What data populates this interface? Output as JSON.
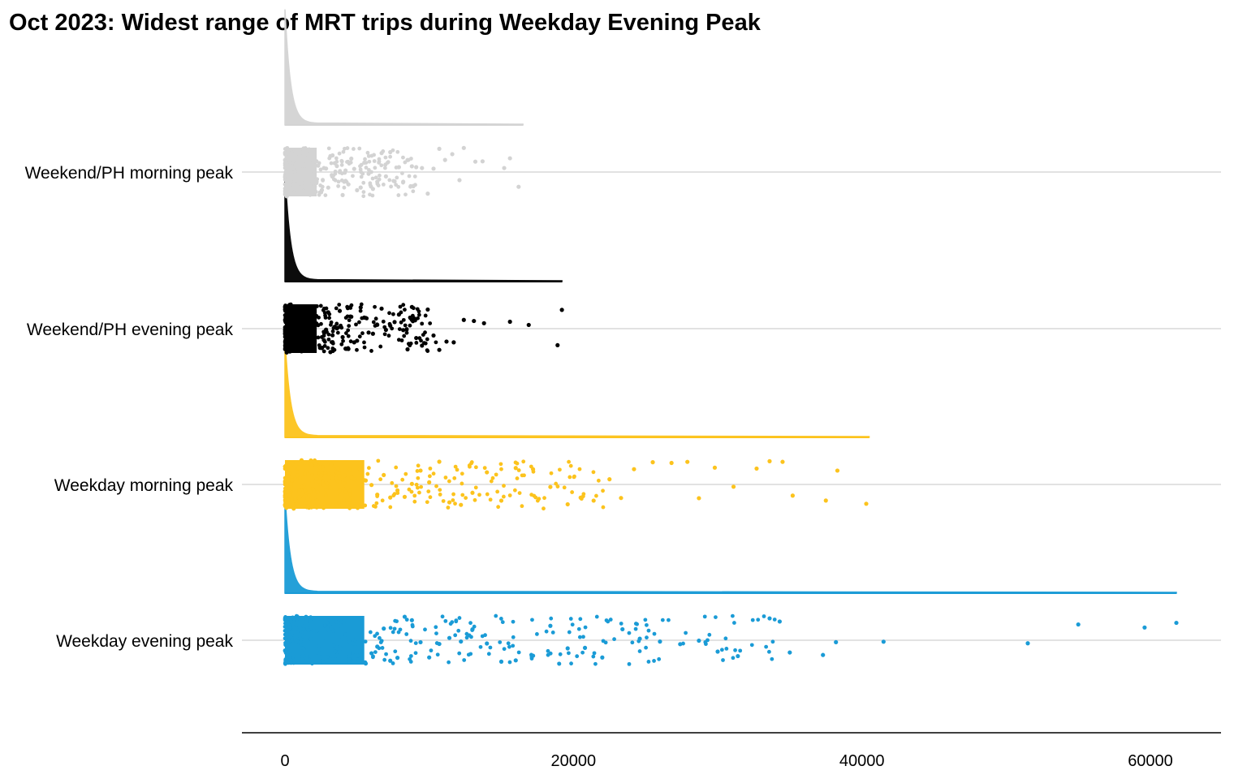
{
  "chart_data": {
    "type": "raincloud",
    "title": "Oct 2023: Widest range of MRT trips during Weekday Evening Peak",
    "xlabel": "",
    "ylabel": "",
    "xlim": [
      -3000,
      65000
    ],
    "x_ticks": [
      0,
      20000,
      40000,
      60000
    ],
    "x_tick_labels": [
      "0",
      "20000",
      "40000",
      "60000"
    ],
    "grid": "horizontal",
    "legend": "none",
    "categories": [
      "Weekend/PH morning peak",
      "Weekend/PH evening peak",
      "Weekday morning peak",
      "Weekday evening peak"
    ],
    "series": [
      {
        "category": "Weekend/PH morning peak",
        "color": "#d3d3d3",
        "max": 16500,
        "density_height": 0.45,
        "sample_values": [
          15,
          40,
          80,
          120,
          180,
          250,
          320,
          400,
          480,
          560,
          650,
          750,
          850,
          950,
          1050,
          1150,
          1250,
          1350,
          1450,
          1560,
          1680,
          1800,
          1920,
          2050,
          2180,
          2300,
          2430,
          2560,
          2700,
          2850,
          3000,
          3150,
          3300,
          3450,
          3600,
          3800,
          4000,
          4200,
          4400,
          4600,
          4800,
          5000,
          5250,
          5500,
          5800,
          6100,
          6400,
          6700,
          7000,
          7300,
          7600,
          7900,
          8200,
          8500,
          8800,
          9100,
          9500,
          9900,
          10300,
          10700,
          11100,
          11600,
          12100,
          12400,
          13200,
          13700,
          15200,
          15600,
          16200
        ]
      },
      {
        "category": "Weekend/PH evening peak",
        "color": "#000000",
        "max": 19200,
        "density_height": 0.4,
        "sample_values": [
          15,
          40,
          80,
          120,
          180,
          250,
          320,
          400,
          480,
          560,
          650,
          750,
          850,
          950,
          1050,
          1150,
          1250,
          1350,
          1450,
          1560,
          1680,
          1800,
          1920,
          2050,
          2180,
          2300,
          2430,
          2560,
          2700,
          2850,
          3000,
          3150,
          3300,
          3450,
          3600,
          3800,
          4000,
          4200,
          4400,
          4600,
          4800,
          5000,
          5250,
          5500,
          5800,
          6100,
          6400,
          6700,
          7000,
          7300,
          7600,
          7900,
          8200,
          8500,
          8800,
          9100,
          9500,
          9900,
          10300,
          10700,
          11200,
          11700,
          12400,
          13100,
          13800,
          15600,
          16900,
          18900,
          19200
        ]
      },
      {
        "category": "Weekday morning peak",
        "color": "#fcc31d",
        "max": 40500,
        "density_height": 0.3,
        "sample_values": [
          15,
          40,
          80,
          120,
          180,
          250,
          320,
          400,
          500,
          600,
          720,
          850,
          1000,
          1150,
          1300,
          1460,
          1630,
          1800,
          2000,
          2200,
          2400,
          2600,
          2850,
          3100,
          3350,
          3600,
          3900,
          4200,
          4500,
          4850,
          5200,
          5600,
          6000,
          6400,
          6850,
          7300,
          7800,
          8300,
          8800,
          9400,
          10000,
          10700,
          11400,
          12200,
          13000,
          14000,
          15000,
          16000,
          17200,
          18400,
          19600,
          20500,
          21400,
          22500,
          23300,
          24200,
          25500,
          26800,
          27900,
          28700,
          29800,
          31100,
          32700,
          33600,
          34500,
          35200,
          37500,
          38300,
          40300
        ]
      },
      {
        "category": "Weekday evening peak",
        "color": "#1a9bd6",
        "max": 61800,
        "density_height": 0.3,
        "sample_values": [
          15,
          40,
          80,
          120,
          180,
          250,
          320,
          400,
          500,
          600,
          720,
          850,
          1000,
          1150,
          1300,
          1460,
          1630,
          1800,
          2000,
          2200,
          2400,
          2600,
          2850,
          3100,
          3350,
          3600,
          3900,
          4200,
          4500,
          4850,
          5200,
          5600,
          6000,
          6400,
          6850,
          7300,
          7800,
          8300,
          8800,
          9400,
          10000,
          10700,
          11400,
          12200,
          13000,
          14000,
          15000,
          16000,
          17200,
          18400,
          19600,
          20800,
          22000,
          23400,
          24600,
          26000,
          27400,
          28700,
          30000,
          31400,
          33600,
          34300,
          35000,
          37300,
          38200,
          41500,
          51500,
          55000,
          59600,
          61800
        ]
      }
    ]
  }
}
